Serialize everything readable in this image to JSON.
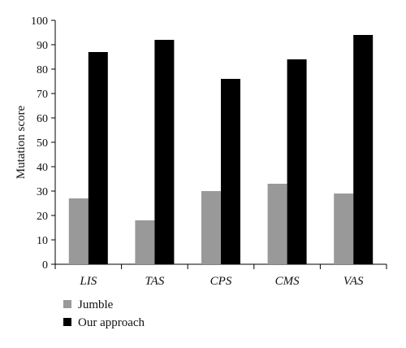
{
  "chart_data": {
    "type": "bar",
    "categories": [
      "LIS",
      "TAS",
      "CPS",
      "CMS",
      "VAS"
    ],
    "series": [
      {
        "name": "Jumble",
        "values": [
          27,
          18,
          30,
          33,
          29
        ],
        "color": "#999999"
      },
      {
        "name": "Our approach",
        "values": [
          87,
          92,
          76,
          84,
          94
        ],
        "color": "#000000"
      }
    ],
    "ylabel": "Mutation score",
    "xlabel": "",
    "ylim": [
      0,
      100
    ],
    "yticks": [
      0,
      10,
      20,
      30,
      40,
      50,
      60,
      70,
      80,
      90,
      100
    ],
    "grid": false,
    "legend_position": "bottom-left"
  }
}
